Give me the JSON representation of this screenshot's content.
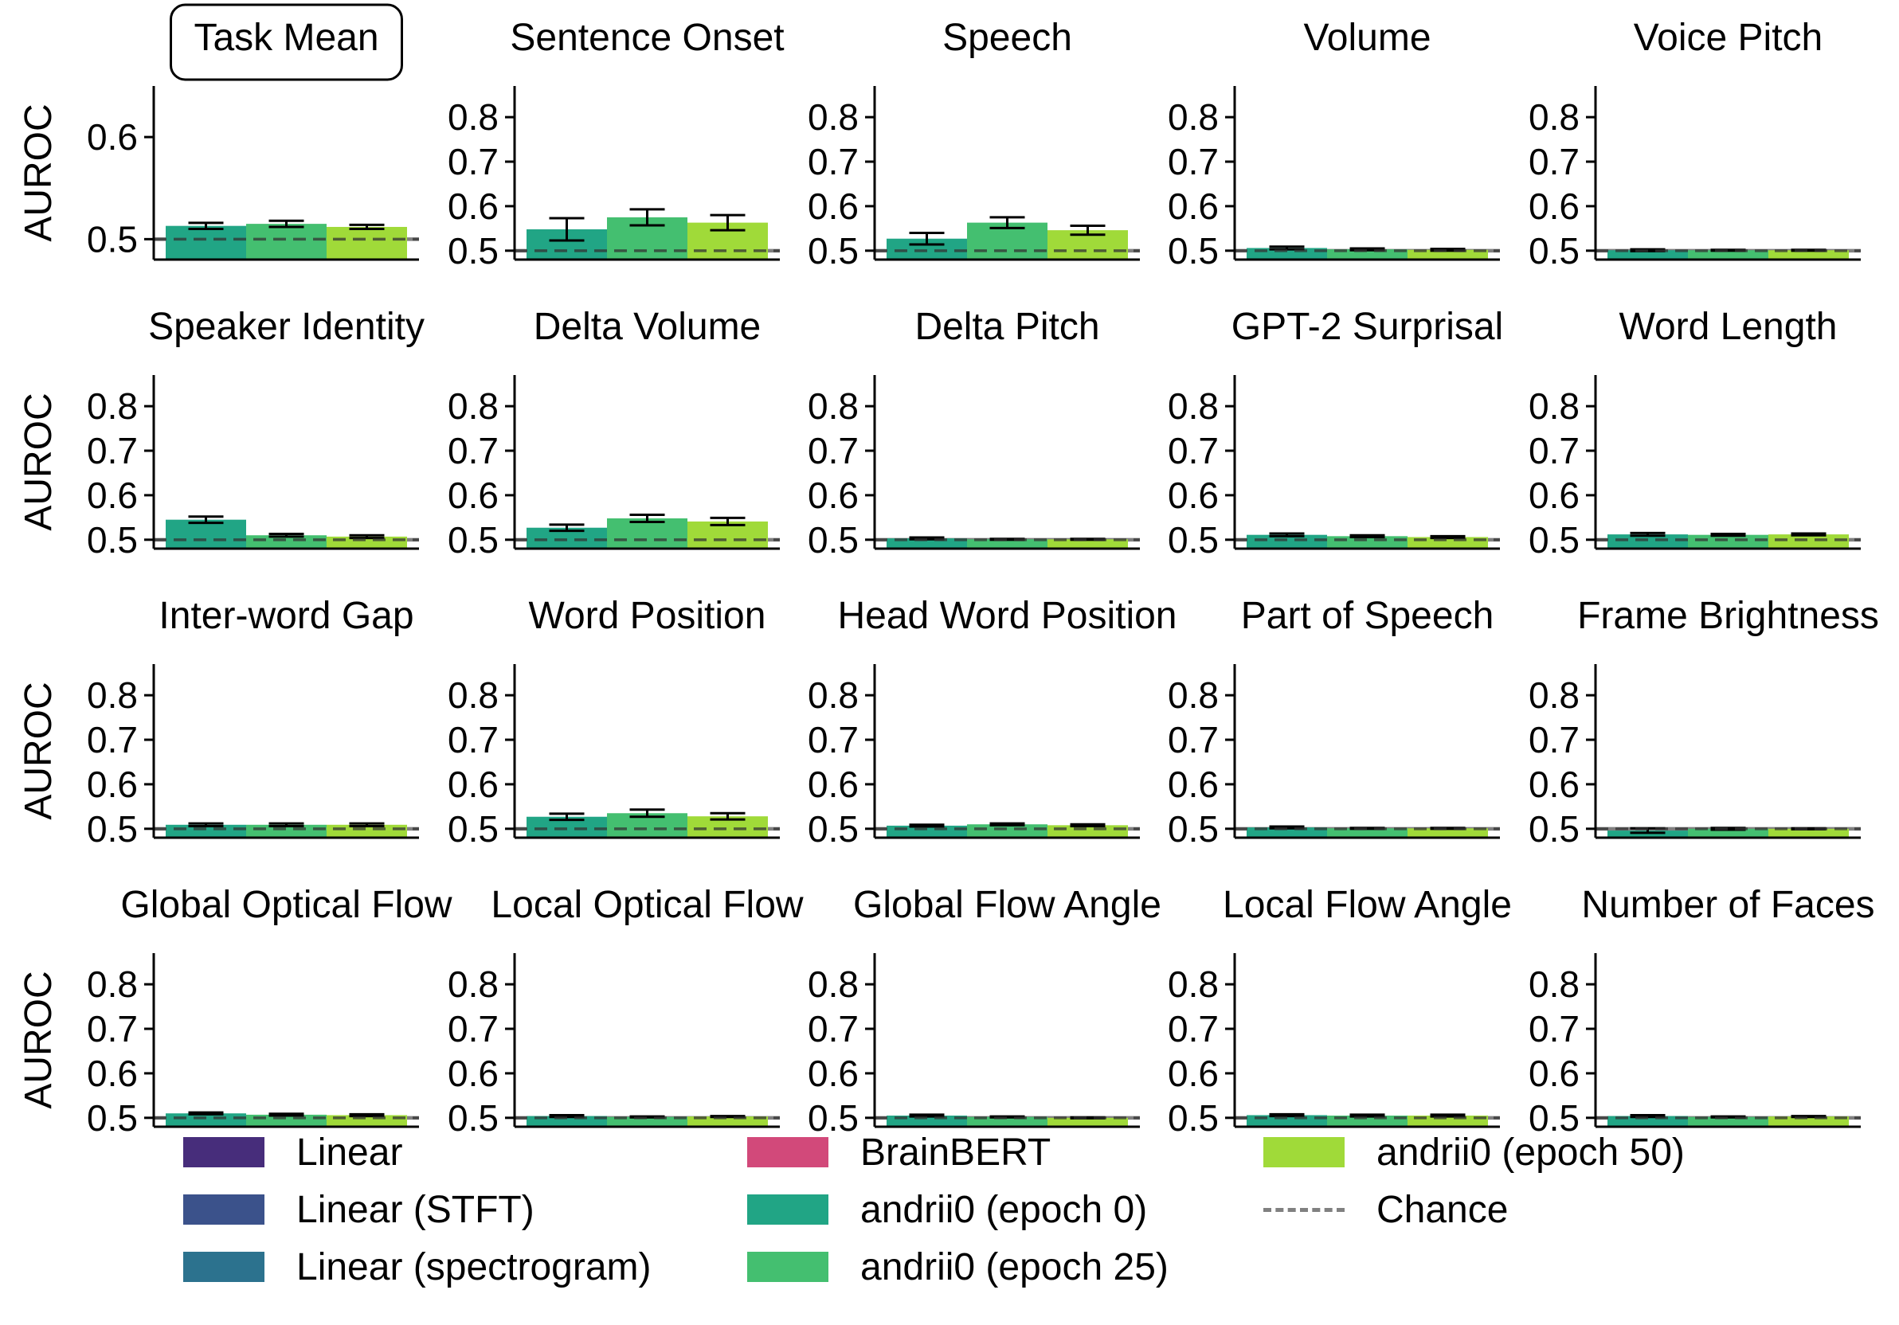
{
  "chart_data": {
    "type": "bar",
    "layout": "small-multiples",
    "grid": false,
    "chance_level": 0.5,
    "series_colors": {
      "Linear": "#472d7b",
      "Linear (STFT)": "#3b528b",
      "Linear (spectrogram)": "#2c728e",
      "BrainBERT": "#d2497a",
      "andrii0 (epoch 0)": "#21a585",
      "andrii0 (epoch 25)": "#44bf70",
      "andrii0 (epoch 50)": "#a0da39"
    },
    "plotted_series": [
      "andrii0 (epoch 0)",
      "andrii0 (epoch 25)",
      "andrii0 (epoch 50)"
    ],
    "legend": {
      "entries": [
        "Linear",
        "Linear (STFT)",
        "Linear (spectrogram)",
        "BrainBERT",
        "andrii0 (epoch 0)",
        "andrii0 (epoch 25)",
        "andrii0 (epoch 50)",
        "Chance"
      ],
      "placement": "bottom"
    },
    "ylabel": "AUROC",
    "panels": [
      {
        "title": "Task Mean",
        "highlighted": true,
        "ylim": [
          0.48,
          0.65
        ],
        "yticks": [
          "0.5",
          "0.6"
        ],
        "values": [
          0.513,
          0.515,
          0.512
        ],
        "errors": [
          0.003,
          0.003,
          0.002
        ]
      },
      {
        "title": "Sentence Onset",
        "ylim": [
          0.48,
          0.87
        ],
        "yticks": [
          "0.5",
          "0.6",
          "0.7",
          "0.8"
        ],
        "values": [
          0.548,
          0.575,
          0.563
        ],
        "errors": [
          0.025,
          0.018,
          0.017
        ]
      },
      {
        "title": "Speech",
        "ylim": [
          0.48,
          0.87
        ],
        "yticks": [
          "0.5",
          "0.6",
          "0.7",
          "0.8"
        ],
        "values": [
          0.527,
          0.563,
          0.546
        ],
        "errors": [
          0.013,
          0.012,
          0.01
        ]
      },
      {
        "title": "Volume",
        "ylim": [
          0.48,
          0.87
        ],
        "yticks": [
          "0.5",
          "0.6",
          "0.7",
          "0.8"
        ],
        "values": [
          0.506,
          0.503,
          0.502
        ],
        "errors": [
          0.003,
          0.002,
          0.002
        ]
      },
      {
        "title": "Voice Pitch",
        "ylim": [
          0.48,
          0.87
        ],
        "yticks": [
          "0.5",
          "0.6",
          "0.7",
          "0.8"
        ],
        "values": [
          0.501,
          0.501,
          0.501
        ],
        "errors": [
          0.002,
          0.001,
          0.001
        ]
      },
      {
        "title": "Speaker Identity",
        "ylim": [
          0.48,
          0.87
        ],
        "yticks": [
          "0.5",
          "0.6",
          "0.7",
          "0.8"
        ],
        "values": [
          0.545,
          0.51,
          0.507
        ],
        "errors": [
          0.007,
          0.003,
          0.003
        ]
      },
      {
        "title": "Delta Volume",
        "ylim": [
          0.48,
          0.87
        ],
        "yticks": [
          "0.5",
          "0.6",
          "0.7",
          "0.8"
        ],
        "values": [
          0.527,
          0.548,
          0.541
        ],
        "errors": [
          0.007,
          0.008,
          0.008
        ]
      },
      {
        "title": "Delta Pitch",
        "ylim": [
          0.48,
          0.87
        ],
        "yticks": [
          "0.5",
          "0.6",
          "0.7",
          "0.8"
        ],
        "values": [
          0.503,
          0.501,
          0.501
        ],
        "errors": [
          0.002,
          0.001,
          0.001
        ]
      },
      {
        "title": "GPT-2 Surprisal",
        "ylim": [
          0.48,
          0.87
        ],
        "yticks": [
          "0.5",
          "0.6",
          "0.7",
          "0.8"
        ],
        "values": [
          0.511,
          0.508,
          0.506
        ],
        "errors": [
          0.003,
          0.002,
          0.002
        ]
      },
      {
        "title": "Word Length",
        "ylim": [
          0.48,
          0.87
        ],
        "yticks": [
          "0.5",
          "0.6",
          "0.7",
          "0.8"
        ],
        "values": [
          0.512,
          0.511,
          0.512
        ],
        "errors": [
          0.003,
          0.002,
          0.002
        ]
      },
      {
        "title": "Inter-word Gap",
        "ylim": [
          0.48,
          0.87
        ],
        "yticks": [
          "0.5",
          "0.6",
          "0.7",
          "0.8"
        ],
        "values": [
          0.509,
          0.509,
          0.509
        ],
        "errors": [
          0.003,
          0.003,
          0.003
        ]
      },
      {
        "title": "Word Position",
        "ylim": [
          0.48,
          0.87
        ],
        "yticks": [
          "0.5",
          "0.6",
          "0.7",
          "0.8"
        ],
        "values": [
          0.527,
          0.535,
          0.528
        ],
        "errors": [
          0.007,
          0.008,
          0.007
        ]
      },
      {
        "title": "Head Word Position",
        "ylim": [
          0.48,
          0.87
        ],
        "yticks": [
          "0.5",
          "0.6",
          "0.7",
          "0.8"
        ],
        "values": [
          0.507,
          0.51,
          0.508
        ],
        "errors": [
          0.002,
          0.002,
          0.002
        ]
      },
      {
        "title": "Part of Speech",
        "ylim": [
          0.48,
          0.87
        ],
        "yticks": [
          "0.5",
          "0.6",
          "0.7",
          "0.8"
        ],
        "values": [
          0.503,
          0.501,
          0.501
        ],
        "errors": [
          0.002,
          0.001,
          0.001
        ]
      },
      {
        "title": "Frame Brightness",
        "ylim": [
          0.48,
          0.87
        ],
        "yticks": [
          "0.5",
          "0.6",
          "0.7",
          "0.8"
        ],
        "values": [
          0.496,
          0.5,
          0.5
        ],
        "errors": [
          0.005,
          0.002,
          0.001
        ]
      },
      {
        "title": "Global Optical Flow",
        "ylim": [
          0.48,
          0.87
        ],
        "yticks": [
          "0.5",
          "0.6",
          "0.7",
          "0.8"
        ],
        "values": [
          0.51,
          0.507,
          0.506
        ],
        "errors": [
          0.002,
          0.002,
          0.002
        ]
      },
      {
        "title": "Local Optical Flow",
        "ylim": [
          0.48,
          0.87
        ],
        "yticks": [
          "0.5",
          "0.6",
          "0.7",
          "0.8"
        ],
        "values": [
          0.504,
          0.502,
          0.503
        ],
        "errors": [
          0.002,
          0.001,
          0.001
        ]
      },
      {
        "title": "Global Flow Angle",
        "ylim": [
          0.48,
          0.87
        ],
        "yticks": [
          "0.5",
          "0.6",
          "0.7",
          "0.8"
        ],
        "values": [
          0.505,
          0.502,
          0.5
        ],
        "errors": [
          0.002,
          0.001,
          0.001
        ]
      },
      {
        "title": "Local Flow Angle",
        "ylim": [
          0.48,
          0.87
        ],
        "yticks": [
          "0.5",
          "0.6",
          "0.7",
          "0.8"
        ],
        "values": [
          0.506,
          0.505,
          0.505
        ],
        "errors": [
          0.002,
          0.002,
          0.002
        ]
      },
      {
        "title": "Number of Faces",
        "ylim": [
          0.48,
          0.87
        ],
        "yticks": [
          "0.5",
          "0.6",
          "0.7",
          "0.8"
        ],
        "values": [
          0.504,
          0.502,
          0.503
        ],
        "errors": [
          0.002,
          0.001,
          0.001
        ]
      }
    ]
  }
}
